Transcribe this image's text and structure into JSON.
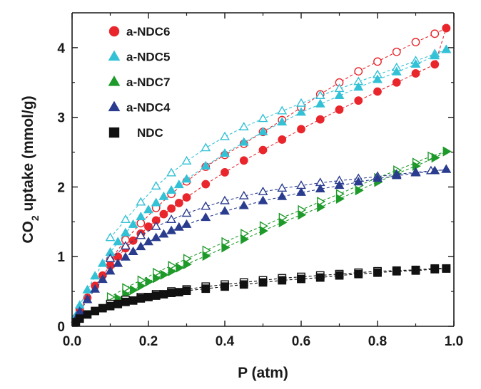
{
  "chart_data": {
    "type": "scatter",
    "xlabel": "P (atm)",
    "ylabel": {
      "main": "CO",
      "sub": "2",
      "rest": " uptake (mmol/g)"
    },
    "xlim": [
      0,
      1.0
    ],
    "ylim": [
      0,
      4.5
    ],
    "xticks": [
      "0.0",
      "0.2",
      "0.4",
      "0.6",
      "0.8",
      "1.0"
    ],
    "yticks": [
      "0",
      "1",
      "2",
      "3",
      "4"
    ],
    "grid": false,
    "legend_position": "top-left",
    "series": [
      {
        "name": "a-NDC6",
        "color": "#e8262c",
        "marker": "circle",
        "adsorption": [
          [
            0.01,
            0.12
          ],
          [
            0.02,
            0.24
          ],
          [
            0.04,
            0.41
          ],
          [
            0.06,
            0.58
          ],
          [
            0.08,
            0.73
          ],
          [
            0.1,
            0.87
          ],
          [
            0.12,
            1.0
          ],
          [
            0.14,
            1.12
          ],
          [
            0.16,
            1.23
          ],
          [
            0.18,
            1.33
          ],
          [
            0.2,
            1.43
          ],
          [
            0.22,
            1.52
          ],
          [
            0.24,
            1.61
          ],
          [
            0.26,
            1.69
          ],
          [
            0.28,
            1.77
          ],
          [
            0.3,
            1.85
          ],
          [
            0.35,
            2.04
          ],
          [
            0.4,
            2.21
          ],
          [
            0.45,
            2.38
          ],
          [
            0.5,
            2.53
          ],
          [
            0.55,
            2.68
          ],
          [
            0.6,
            2.83
          ],
          [
            0.65,
            2.97
          ],
          [
            0.7,
            3.11
          ],
          [
            0.75,
            3.24
          ],
          [
            0.8,
            3.37
          ],
          [
            0.85,
            3.5
          ],
          [
            0.9,
            3.63
          ],
          [
            0.95,
            3.76
          ],
          [
            0.98,
            4.28
          ]
        ],
        "desorption": [
          [
            0.98,
            4.28
          ],
          [
            0.95,
            4.2
          ],
          [
            0.9,
            4.08
          ],
          [
            0.85,
            3.94
          ],
          [
            0.8,
            3.8
          ],
          [
            0.75,
            3.66
          ],
          [
            0.7,
            3.5
          ],
          [
            0.65,
            3.33
          ],
          [
            0.6,
            3.14
          ],
          [
            0.55,
            2.96
          ],
          [
            0.5,
            2.79
          ],
          [
            0.45,
            2.62
          ],
          [
            0.4,
            2.46
          ],
          [
            0.35,
            2.29
          ],
          [
            0.3,
            2.08
          ],
          [
            0.26,
            1.9
          ],
          [
            0.22,
            1.7
          ],
          [
            0.18,
            1.48
          ],
          [
            0.14,
            1.24
          ],
          [
            0.1,
            0.95
          ]
        ]
      },
      {
        "name": "a-NDC5",
        "color": "#33c1d6",
        "marker": "triangle",
        "adsorption": [
          [
            0.01,
            0.15
          ],
          [
            0.02,
            0.3
          ],
          [
            0.04,
            0.52
          ],
          [
            0.06,
            0.72
          ],
          [
            0.08,
            0.9
          ],
          [
            0.1,
            1.06
          ],
          [
            0.12,
            1.21
          ],
          [
            0.14,
            1.34
          ],
          [
            0.16,
            1.46
          ],
          [
            0.18,
            1.57
          ],
          [
            0.2,
            1.67
          ],
          [
            0.22,
            1.77
          ],
          [
            0.24,
            1.86
          ],
          [
            0.26,
            1.95
          ],
          [
            0.28,
            2.03
          ],
          [
            0.3,
            2.11
          ],
          [
            0.35,
            2.3
          ],
          [
            0.4,
            2.48
          ],
          [
            0.45,
            2.64
          ],
          [
            0.5,
            2.79
          ],
          [
            0.55,
            2.93
          ],
          [
            0.6,
            3.07
          ],
          [
            0.65,
            3.19
          ],
          [
            0.7,
            3.31
          ],
          [
            0.75,
            3.43
          ],
          [
            0.8,
            3.54
          ],
          [
            0.85,
            3.65
          ],
          [
            0.9,
            3.76
          ],
          [
            0.95,
            3.88
          ],
          [
            0.98,
            3.97
          ]
        ],
        "desorption": [
          [
            0.98,
            3.97
          ],
          [
            0.95,
            3.91
          ],
          [
            0.9,
            3.81
          ],
          [
            0.85,
            3.71
          ],
          [
            0.8,
            3.61
          ],
          [
            0.75,
            3.51
          ],
          [
            0.7,
            3.41
          ],
          [
            0.65,
            3.31
          ],
          [
            0.6,
            3.2
          ],
          [
            0.55,
            3.09
          ],
          [
            0.5,
            2.98
          ],
          [
            0.45,
            2.86
          ],
          [
            0.4,
            2.72
          ],
          [
            0.35,
            2.56
          ],
          [
            0.3,
            2.37
          ],
          [
            0.26,
            2.2
          ],
          [
            0.22,
            2.01
          ],
          [
            0.18,
            1.78
          ],
          [
            0.14,
            1.53
          ],
          [
            0.1,
            1.27
          ]
        ]
      },
      {
        "name": "a-NDC7",
        "color": "#1e9a2a",
        "marker": "triangle-right",
        "adsorption": [
          [
            0.1,
            0.33
          ],
          [
            0.12,
            0.4
          ],
          [
            0.14,
            0.46
          ],
          [
            0.16,
            0.52
          ],
          [
            0.18,
            0.58
          ],
          [
            0.2,
            0.64
          ],
          [
            0.22,
            0.69
          ],
          [
            0.24,
            0.74
          ],
          [
            0.26,
            0.79
          ],
          [
            0.28,
            0.84
          ],
          [
            0.3,
            0.89
          ],
          [
            0.35,
            1.01
          ],
          [
            0.4,
            1.13
          ],
          [
            0.45,
            1.25
          ],
          [
            0.5,
            1.37
          ],
          [
            0.55,
            1.49
          ],
          [
            0.6,
            1.6
          ],
          [
            0.65,
            1.71
          ],
          [
            0.7,
            1.83
          ],
          [
            0.75,
            1.95
          ],
          [
            0.8,
            2.07
          ],
          [
            0.85,
            2.19
          ],
          [
            0.9,
            2.3
          ],
          [
            0.95,
            2.42
          ],
          [
            0.98,
            2.51
          ]
        ],
        "desorption": [
          [
            0.98,
            2.51
          ],
          [
            0.94,
            2.44
          ],
          [
            0.9,
            2.35
          ],
          [
            0.85,
            2.24
          ],
          [
            0.8,
            2.13
          ],
          [
            0.75,
            2.02
          ],
          [
            0.7,
            1.9
          ],
          [
            0.65,
            1.79
          ],
          [
            0.6,
            1.67
          ],
          [
            0.55,
            1.56
          ],
          [
            0.5,
            1.44
          ],
          [
            0.45,
            1.33
          ],
          [
            0.4,
            1.21
          ],
          [
            0.35,
            1.09
          ],
          [
            0.3,
            0.97
          ],
          [
            0.26,
            0.87
          ],
          [
            0.22,
            0.77
          ],
          [
            0.18,
            0.66
          ],
          [
            0.14,
            0.55
          ],
          [
            0.1,
            0.42
          ]
        ]
      },
      {
        "name": "a-NDC4",
        "color": "#2a3c8e",
        "marker": "triangle",
        "adsorption": [
          [
            0.01,
            0.1
          ],
          [
            0.02,
            0.21
          ],
          [
            0.04,
            0.38
          ],
          [
            0.06,
            0.53
          ],
          [
            0.08,
            0.67
          ],
          [
            0.1,
            0.79
          ],
          [
            0.12,
            0.9
          ],
          [
            0.14,
            0.99
          ],
          [
            0.16,
            1.07
          ],
          [
            0.18,
            1.14
          ],
          [
            0.2,
            1.21
          ],
          [
            0.22,
            1.27
          ],
          [
            0.24,
            1.32
          ],
          [
            0.26,
            1.37
          ],
          [
            0.28,
            1.42
          ],
          [
            0.3,
            1.46
          ],
          [
            0.35,
            1.56
          ],
          [
            0.4,
            1.65
          ],
          [
            0.45,
            1.73
          ],
          [
            0.5,
            1.8
          ],
          [
            0.55,
            1.86
          ],
          [
            0.6,
            1.92
          ],
          [
            0.65,
            1.97
          ],
          [
            0.7,
            2.02
          ],
          [
            0.75,
            2.07
          ],
          [
            0.8,
            2.12
          ],
          [
            0.85,
            2.16
          ],
          [
            0.9,
            2.2
          ],
          [
            0.95,
            2.23
          ],
          [
            0.98,
            2.25
          ]
        ],
        "desorption": [
          [
            0.98,
            2.25
          ],
          [
            0.94,
            2.23
          ],
          [
            0.9,
            2.21
          ],
          [
            0.85,
            2.18
          ],
          [
            0.8,
            2.15
          ],
          [
            0.75,
            2.12
          ],
          [
            0.7,
            2.09
          ],
          [
            0.65,
            2.06
          ],
          [
            0.6,
            2.02
          ],
          [
            0.55,
            1.98
          ],
          [
            0.5,
            1.93
          ],
          [
            0.45,
            1.87
          ],
          [
            0.4,
            1.8
          ],
          [
            0.35,
            1.72
          ],
          [
            0.3,
            1.62
          ],
          [
            0.26,
            1.53
          ],
          [
            0.22,
            1.43
          ],
          [
            0.18,
            1.3
          ],
          [
            0.14,
            1.15
          ],
          [
            0.1,
            0.97
          ]
        ]
      },
      {
        "name": "NDC",
        "color": "#111111",
        "marker": "square",
        "adsorption": [
          [
            0.01,
            0.06
          ],
          [
            0.02,
            0.11
          ],
          [
            0.04,
            0.17
          ],
          [
            0.06,
            0.22
          ],
          [
            0.08,
            0.26
          ],
          [
            0.1,
            0.29
          ],
          [
            0.12,
            0.32
          ],
          [
            0.14,
            0.35
          ],
          [
            0.16,
            0.37
          ],
          [
            0.18,
            0.4
          ],
          [
            0.2,
            0.42
          ],
          [
            0.22,
            0.44
          ],
          [
            0.24,
            0.46
          ],
          [
            0.26,
            0.48
          ],
          [
            0.28,
            0.49
          ],
          [
            0.3,
            0.51
          ],
          [
            0.35,
            0.54
          ],
          [
            0.4,
            0.57
          ],
          [
            0.45,
            0.6
          ],
          [
            0.5,
            0.63
          ],
          [
            0.55,
            0.66
          ],
          [
            0.6,
            0.68
          ],
          [
            0.65,
            0.7
          ],
          [
            0.7,
            0.73
          ],
          [
            0.75,
            0.75
          ],
          [
            0.8,
            0.77
          ],
          [
            0.85,
            0.79
          ],
          [
            0.9,
            0.8
          ],
          [
            0.95,
            0.82
          ],
          [
            0.98,
            0.83
          ]
        ],
        "desorption": [
          [
            0.98,
            0.83
          ],
          [
            0.95,
            0.83
          ],
          [
            0.9,
            0.81
          ],
          [
            0.85,
            0.8
          ],
          [
            0.8,
            0.79
          ],
          [
            0.75,
            0.77
          ],
          [
            0.7,
            0.75
          ],
          [
            0.65,
            0.73
          ],
          [
            0.6,
            0.71
          ],
          [
            0.55,
            0.69
          ],
          [
            0.5,
            0.66
          ],
          [
            0.45,
            0.63
          ],
          [
            0.4,
            0.6
          ],
          [
            0.35,
            0.57
          ],
          [
            0.3,
            0.53
          ],
          [
            0.26,
            0.5
          ],
          [
            0.22,
            0.46
          ],
          [
            0.18,
            0.42
          ],
          [
            0.14,
            0.38
          ],
          [
            0.1,
            0.32
          ]
        ]
      }
    ]
  }
}
